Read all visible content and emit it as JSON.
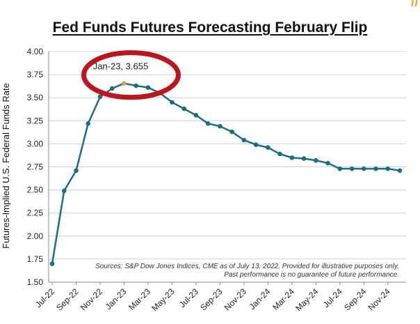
{
  "corner_mark": "//",
  "chart_data": {
    "type": "line",
    "title": "Fed Funds Futures Forecasting February Flip",
    "ylabel": "Futures-Implied U.S. Federal Funds Rate",
    "xlabel": "",
    "ylim": [
      1.5,
      4.0
    ],
    "yticks": [
      "1.50",
      "1.75",
      "2.00",
      "2.25",
      "2.50",
      "2.75",
      "3.00",
      "3.25",
      "3.50",
      "3.75",
      "4.00"
    ],
    "x_tick_labels": [
      "Jul-22",
      "Sep-22",
      "Nov-22",
      "Jan-23",
      "Mar-23",
      "May-23",
      "Jul-23",
      "Sep-23",
      "Nov-23",
      "Jan-24",
      "Mar-24",
      "May-24",
      "Jul-24",
      "Sep-24",
      "Nov-24"
    ],
    "grid": "horizontal",
    "series_color": "#1a6f84",
    "x": [
      "Jul-22",
      "Aug-22",
      "Sep-22",
      "Oct-22",
      "Nov-22",
      "Dec-22",
      "Jan-23",
      "Feb-23",
      "Mar-23",
      "Apr-23",
      "May-23",
      "Jun-23",
      "Jul-23",
      "Aug-23",
      "Sep-23",
      "Oct-23",
      "Nov-23",
      "Dec-23",
      "Jan-24",
      "Feb-24",
      "Mar-24",
      "Apr-24",
      "May-24",
      "Jun-24",
      "Jul-24",
      "Aug-24",
      "Sep-24",
      "Oct-24",
      "Nov-24",
      "Dec-24"
    ],
    "values": [
      1.7,
      2.49,
      2.71,
      3.22,
      3.51,
      3.6,
      3.655,
      3.63,
      3.61,
      3.55,
      3.45,
      3.38,
      3.31,
      3.22,
      3.19,
      3.13,
      3.04,
      2.99,
      2.96,
      2.89,
      2.85,
      2.84,
      2.82,
      2.79,
      2.73,
      2.73,
      2.73,
      2.73,
      2.73,
      2.71
    ],
    "highlight_index": 6,
    "highlight_point_color": "#c8a84a",
    "annotation": "Jan-23, 3.655",
    "highlight_ring_color": "#c0141c",
    "source_note": [
      "Sources: S&P Dow Jones Indices, CME as of July 13, 2022.  Provided for illustrative purposes only.",
      "Past performance is no guarantee of future performance."
    ]
  }
}
